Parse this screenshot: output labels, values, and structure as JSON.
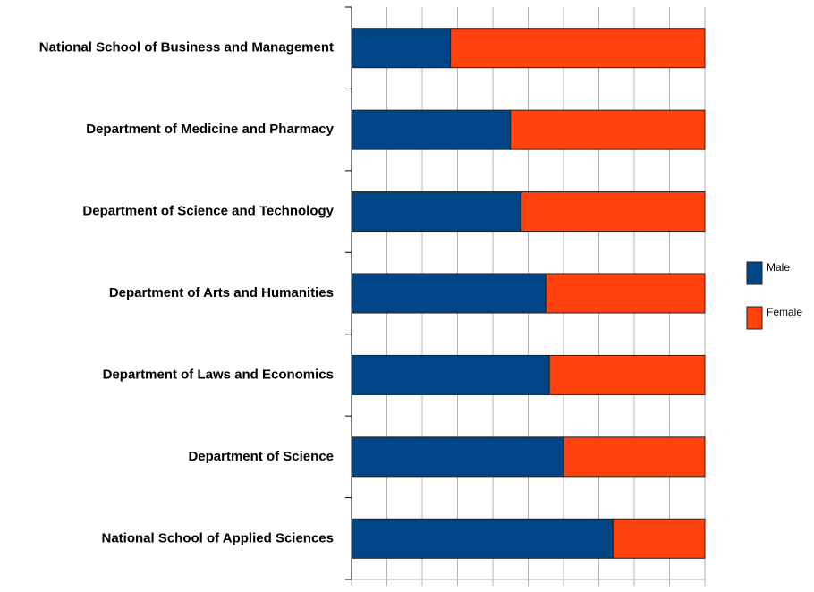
{
  "chart_data": {
    "type": "bar",
    "orientation": "horizontal",
    "stacked": true,
    "categories": [
      "National School of Business and Management",
      "Department of Medicine and Pharmacy",
      "Department of Science and Technology",
      "Department of Arts and Humanities",
      "Department of Laws and Economics",
      "Department of Science",
      "National School of Applied Sciences"
    ],
    "series": [
      {
        "name": "Male",
        "color": "#004586",
        "values": [
          28,
          45,
          48,
          55,
          56,
          60,
          74
        ]
      },
      {
        "name": "Female",
        "color": "#ff420e",
        "values": [
          72,
          55,
          52,
          45,
          44,
          40,
          26
        ]
      }
    ],
    "xlim": [
      0,
      100
    ],
    "xticks": [
      0,
      10,
      20,
      30,
      40,
      50,
      60,
      70,
      80,
      90,
      100
    ],
    "grid": true,
    "legend": "right"
  }
}
